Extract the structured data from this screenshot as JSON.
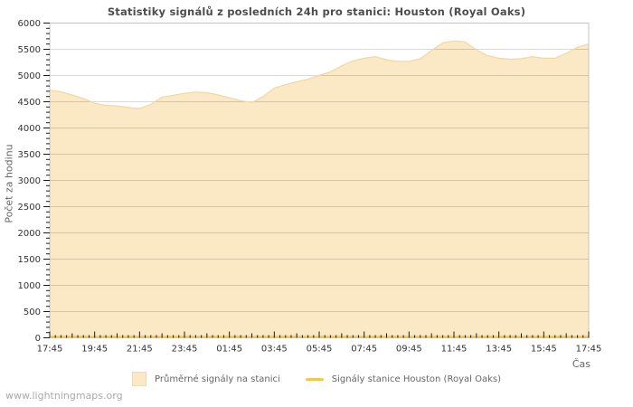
{
  "watermark": "www.lightningmaps.org",
  "colors": {
    "background": "#FFFFFF",
    "plot_border": "#C4C4C4",
    "gridline": "rgba(0,0,0,0.15)",
    "tick": "#1a1a1a",
    "tick_label": "#333333",
    "title_text": "#4d4d4d",
    "axis_title_text": "#666666",
    "legend_text": "#666666",
    "watermark_text": "#AAAAAA"
  },
  "chart_data": {
    "type": "area",
    "title": "Statistiky signálů z posledních 24h pro stanici: Houston (Royal Oaks)",
    "xlabel": "Čas",
    "ylabel": "Počet za hodinu",
    "ylim": [
      0,
      6000
    ],
    "y_tick_step": 500,
    "y_minor_step": 100,
    "y_tick_labels": [
      "0",
      "500",
      "1000",
      "1500",
      "2000",
      "2500",
      "3000",
      "3500",
      "4000",
      "4500",
      "5000",
      "5500",
      "6000"
    ],
    "x_tick_labels": [
      "17:45",
      "19:45",
      "21:45",
      "23:45",
      "01:45",
      "03:45",
      "05:45",
      "07:45",
      "09:45",
      "11:45",
      "13:45",
      "15:45",
      "17:45"
    ],
    "x_minor_interval_minutes": 15,
    "grid": true,
    "legend_position": "bottom",
    "x": [
      "17:45",
      "18:15",
      "18:45",
      "19:15",
      "19:45",
      "20:15",
      "20:45",
      "21:15",
      "21:45",
      "22:15",
      "22:45",
      "23:15",
      "23:45",
      "00:15",
      "00:45",
      "01:15",
      "01:45",
      "02:15",
      "02:45",
      "03:15",
      "03:45",
      "04:15",
      "04:45",
      "05:15",
      "05:45",
      "06:15",
      "06:45",
      "07:15",
      "07:45",
      "08:15",
      "08:45",
      "09:15",
      "09:45",
      "10:15",
      "10:45",
      "11:15",
      "11:45",
      "12:15",
      "12:45",
      "13:15",
      "13:45",
      "14:15",
      "14:45",
      "15:15",
      "15:45",
      "16:15",
      "16:45",
      "17:15",
      "17:45"
    ],
    "series": [
      {
        "name": "Průměrné signály na stanici",
        "render": "area",
        "color": "#FBE8C5",
        "edge_color": "#F0D8A4",
        "values": [
          4720,
          4690,
          4630,
          4560,
          4470,
          4430,
          4420,
          4390,
          4370,
          4450,
          4590,
          4625,
          4660,
          4685,
          4675,
          4630,
          4575,
          4520,
          4485,
          4600,
          4760,
          4825,
          4880,
          4930,
          5000,
          5070,
          5185,
          5280,
          5330,
          5360,
          5300,
          5270,
          5270,
          5320,
          5480,
          5620,
          5660,
          5640,
          5490,
          5380,
          5330,
          5310,
          5320,
          5360,
          5330,
          5330,
          5420,
          5540,
          5600
        ]
      },
      {
        "name": "Signály stanice Houston (Royal Oaks)",
        "render": "line",
        "color": "#F0C850",
        "values": [
          0,
          0,
          0,
          0,
          0,
          0,
          0,
          0,
          0,
          0,
          0,
          0,
          0,
          0,
          0,
          0,
          0,
          0,
          0,
          0,
          0,
          0,
          0,
          0,
          0,
          0,
          0,
          0,
          0,
          0,
          0,
          0,
          0,
          0,
          0,
          0,
          0,
          0,
          0,
          0,
          0,
          0,
          0,
          0,
          0,
          0,
          0,
          0,
          0
        ]
      }
    ]
  }
}
